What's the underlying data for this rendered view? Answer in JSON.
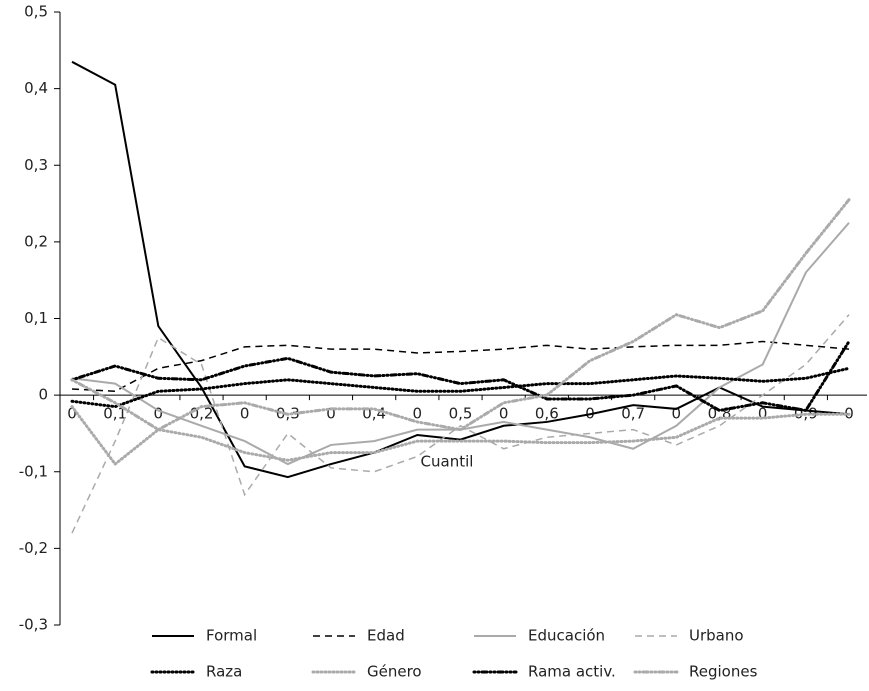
{
  "chart_data": {
    "type": "line",
    "x_label": "Cuantil",
    "categories": [
      "0",
      "0,1",
      "0",
      "0,2",
      "0",
      "0,3",
      "0",
      "0,4",
      "0",
      "0,5",
      "0",
      "0,6",
      "0",
      "0,7",
      "0",
      "0,8",
      "0",
      "0,9",
      "0"
    ],
    "ylim": [
      -0.3,
      0.5
    ],
    "yticks": [
      {
        "value": -0.3,
        "label": "-0,3"
      },
      {
        "value": -0.2,
        "label": "-0,2"
      },
      {
        "value": -0.1,
        "label": "-0,1"
      },
      0,
      {
        "value": 0.1,
        "label": "0,1"
      },
      {
        "value": 0.2,
        "label": "0,2"
      },
      {
        "value": 0.3,
        "label": "0,3"
      },
      {
        "value": 0.4,
        "label": "0,4"
      },
      {
        "value": 0.5,
        "label": "0,5"
      }
    ],
    "grid": false,
    "legend": "bottom",
    "series": [
      {
        "name": "Formal",
        "color": "#000000",
        "dash": "solid",
        "values": [
          0.435,
          0.405,
          0.09,
          0.01,
          -0.093,
          -0.107,
          -0.09,
          -0.075,
          -0.052,
          -0.058,
          -0.04,
          -0.035,
          -0.025,
          -0.013,
          -0.018,
          0.01,
          -0.015,
          -0.02,
          -0.025
        ]
      },
      {
        "name": "Edad",
        "color": "#000000",
        "dash": "dashed",
        "values": [
          0.008,
          0.005,
          0.035,
          0.045,
          0.063,
          0.065,
          0.06,
          0.06,
          0.055,
          0.057,
          0.06,
          0.065,
          0.06,
          0.063,
          0.065,
          0.065,
          0.07,
          0.065,
          0.06
        ]
      },
      {
        "name": "Educación",
        "color": "#aaaaaa",
        "dash": "solid",
        "values": [
          0.022,
          0.015,
          -0.02,
          -0.04,
          -0.06,
          -0.09,
          -0.065,
          -0.06,
          -0.045,
          -0.045,
          -0.035,
          -0.045,
          -0.055,
          -0.07,
          -0.04,
          0.01,
          0.04,
          0.16,
          0.225
        ]
      },
      {
        "name": "Urbano",
        "color": "#aaaaaa",
        "dash": "dashed",
        "values": [
          -0.18,
          -0.06,
          0.075,
          0.04,
          -0.13,
          -0.05,
          -0.095,
          -0.1,
          -0.08,
          -0.04,
          -0.07,
          -0.055,
          -0.05,
          -0.045,
          -0.065,
          -0.04,
          0.0,
          0.04,
          0.105
        ]
      },
      {
        "name": "Raza",
        "color": "#000000",
        "dash": "dotted",
        "values": [
          -0.008,
          -0.015,
          0.005,
          0.008,
          0.015,
          0.02,
          0.015,
          0.01,
          0.005,
          0.005,
          0.01,
          0.015,
          0.015,
          0.02,
          0.025,
          0.022,
          0.018,
          0.022,
          0.035
        ]
      },
      {
        "name": "Género",
        "color": "#aaaaaa",
        "dash": "dotted",
        "values": [
          -0.015,
          -0.09,
          -0.045,
          -0.055,
          -0.075,
          -0.085,
          -0.075,
          -0.075,
          -0.06,
          -0.06,
          -0.06,
          -0.062,
          -0.062,
          -0.06,
          -0.055,
          -0.03,
          -0.03,
          -0.025,
          -0.025
        ]
      },
      {
        "name": "Rama activ.",
        "color": "#000000",
        "dash": "dashdot",
        "values": [
          0.02,
          0.038,
          0.022,
          0.02,
          0.038,
          0.048,
          0.03,
          0.025,
          0.028,
          0.015,
          0.02,
          -0.005,
          -0.005,
          0.0,
          0.012,
          -0.02,
          -0.01,
          -0.02,
          0.07
        ]
      },
      {
        "name": "Regiones",
        "color": "#aaaaaa",
        "dash": "dashdot",
        "values": [
          0.02,
          -0.01,
          -0.045,
          -0.015,
          -0.01,
          -0.025,
          -0.018,
          -0.018,
          -0.035,
          -0.045,
          -0.01,
          0.0,
          0.045,
          0.07,
          0.105,
          0.088,
          0.11,
          0.185,
          0.255
        ]
      }
    ]
  }
}
